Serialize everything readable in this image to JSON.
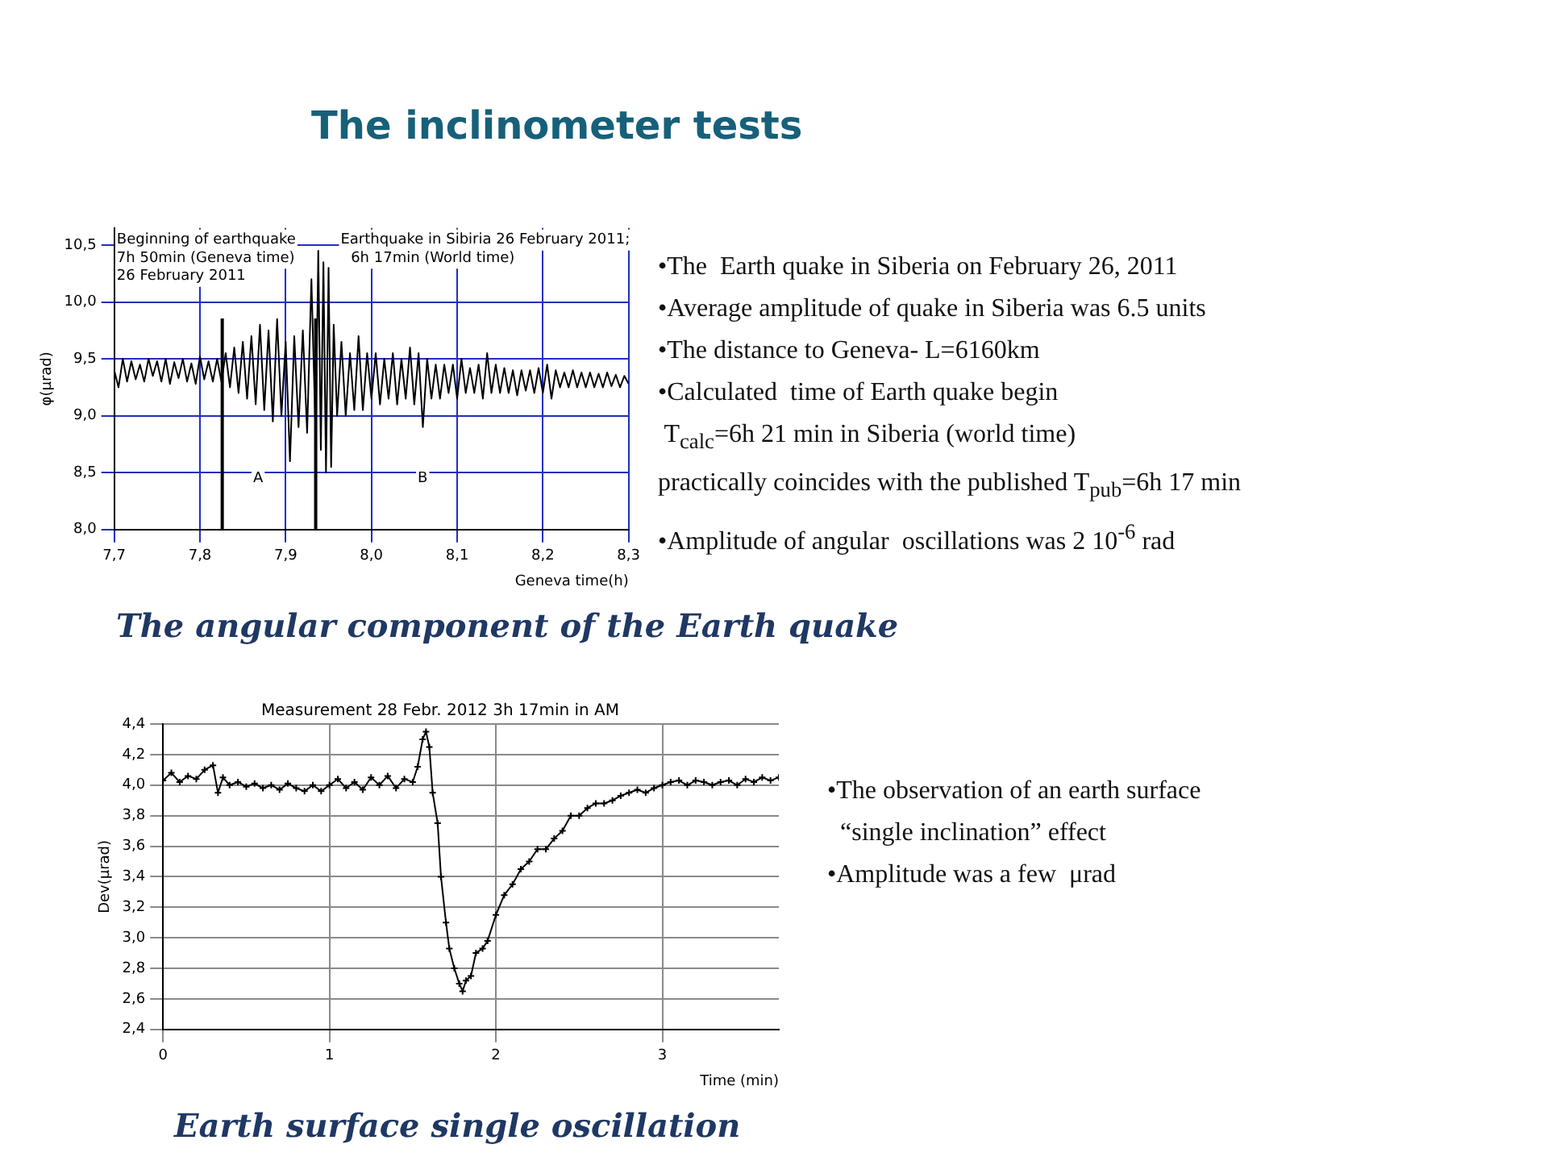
{
  "chart_data": [
    {
      "type": "other",
      "title": "The inclinometer tests"
    },
    {
      "type": "line",
      "xlabel": "Geneva time(h)",
      "ylabel": "φ(μrad)",
      "grid": true,
      "marker": "none",
      "xlim": [
        7.7,
        8.3
      ],
      "ylim": [
        8.0,
        10.65
      ],
      "xticks": [
        {
          "value": 7.7,
          "label": "7,7"
        },
        {
          "value": 7.8,
          "label": "7,8"
        },
        {
          "value": 7.9,
          "label": "7,9"
        },
        {
          "value": 8.0,
          "label": "8,0"
        },
        {
          "value": 8.1,
          "label": "8,1"
        },
        {
          "value": 8.2,
          "label": "8,2"
        },
        {
          "value": 8.3,
          "label": "8,3"
        }
      ],
      "yticks": [
        {
          "value": 8.0,
          "label": "8,0"
        },
        {
          "value": 8.5,
          "label": "8,5"
        },
        {
          "value": 9.0,
          "label": "9,0"
        },
        {
          "value": 9.5,
          "label": "9,5"
        },
        {
          "value": 10.0,
          "label": "10,0"
        },
        {
          "value": 10.5,
          "label": "10,5"
        }
      ],
      "x": [
        7.7,
        7.705,
        7.71,
        7.715,
        7.72,
        7.725,
        7.73,
        7.735,
        7.74,
        7.745,
        7.75,
        7.755,
        7.76,
        7.765,
        7.77,
        7.775,
        7.78,
        7.785,
        7.79,
        7.795,
        7.8,
        7.805,
        7.81,
        7.815,
        7.82,
        7.825,
        7.83,
        7.835,
        7.84,
        7.845,
        7.85,
        7.855,
        7.86,
        7.865,
        7.87,
        7.875,
        7.88,
        7.885,
        7.89,
        7.895,
        7.9,
        7.905,
        7.91,
        7.915,
        7.92,
        7.925,
        7.93,
        7.935,
        7.938,
        7.941,
        7.944,
        7.947,
        7.95,
        7.953,
        7.956,
        7.96,
        7.965,
        7.97,
        7.975,
        7.98,
        7.985,
        7.99,
        7.995,
        8.0,
        8.005,
        8.01,
        8.015,
        8.02,
        8.025,
        8.03,
        8.035,
        8.04,
        8.045,
        8.05,
        8.055,
        8.06,
        8.065,
        8.07,
        8.075,
        8.08,
        8.085,
        8.09,
        8.095,
        8.1,
        8.105,
        8.11,
        8.115,
        8.12,
        8.125,
        8.13,
        8.135,
        8.14,
        8.145,
        8.15,
        8.155,
        8.16,
        8.165,
        8.17,
        8.175,
        8.18,
        8.185,
        8.19,
        8.195,
        8.2,
        8.205,
        8.21,
        8.215,
        8.22,
        8.225,
        8.23,
        8.235,
        8.24,
        8.245,
        8.25,
        8.255,
        8.26,
        8.265,
        8.27,
        8.275,
        8.28,
        8.285,
        8.29,
        8.295,
        8.3
      ],
      "series": [
        {
          "color": "#000000",
          "values": [
            9.4,
            9.25,
            9.5,
            9.3,
            9.48,
            9.32,
            9.45,
            9.3,
            9.5,
            9.35,
            9.48,
            9.3,
            9.5,
            9.28,
            9.47,
            9.33,
            9.5,
            9.3,
            9.46,
            9.28,
            9.52,
            9.32,
            9.48,
            9.3,
            9.5,
            9.3,
            9.55,
            9.25,
            9.6,
            9.2,
            9.65,
            9.15,
            9.7,
            9.1,
            9.8,
            9.05,
            9.75,
            8.95,
            9.85,
            9.0,
            9.65,
            8.6,
            9.7,
            8.9,
            9.75,
            8.85,
            10.2,
            8.8,
            10.45,
            8.7,
            10.35,
            8.5,
            10.3,
            8.55,
            9.8,
            9.0,
            9.65,
            9.0,
            9.55,
            9.05,
            9.7,
            9.05,
            9.55,
            9.15,
            9.55,
            9.1,
            9.5,
            9.15,
            9.55,
            9.1,
            9.5,
            9.15,
            9.6,
            9.1,
            9.55,
            8.9,
            9.5,
            9.15,
            9.45,
            9.15,
            9.45,
            9.2,
            9.45,
            9.15,
            9.5,
            9.2,
            9.42,
            9.2,
            9.45,
            9.15,
            9.55,
            9.2,
            9.45,
            9.2,
            9.42,
            9.2,
            9.4,
            9.18,
            9.4,
            9.22,
            9.4,
            9.2,
            9.42,
            9.2,
            9.45,
            9.15,
            9.4,
            9.25,
            9.38,
            9.25,
            9.4,
            9.25,
            9.38,
            9.25,
            9.38,
            9.25,
            9.37,
            9.25,
            9.38,
            9.26,
            9.36,
            9.25,
            9.35,
            9.28
          ]
        }
      ],
      "ref_lines": [
        {
          "axis": "x",
          "value": 7.826,
          "color": "#000000"
        },
        {
          "axis": "x",
          "value": 7.935,
          "color": "#000000"
        }
      ],
      "annotations": [
        "Beginning of earthquake",
        "7h 50min (Geneva time)",
        "26 February 2011",
        "Earthquake in Sibiria 26 February 2011;",
        "6h 17min (World time)",
        "A",
        "B",
        "The angular component of the Earth quake"
      ]
    },
    {
      "type": "other",
      "annotations": [
        "•The  Earth quake in Siberia on February 26, 2011",
        "•Average amplitude of quake in Siberia was 6.5 units",
        "•The distance to Geneva- L=6160km",
        "•Calculated  time of Earth quake begin",
        " T$_{calc}$=6h 21 min in Siberia (world time)",
        "practically coincides with the published T$_{pub}$=6h 17 min",
        "•Amplitude of angular  oscillations was 2 10$^{-6}$ rad"
      ]
    },
    {
      "type": "line",
      "title": "Measurement 28 Febr. 2012 3h 17min in AM",
      "xlabel": "Time (min)",
      "ylabel": "Dev(μrad)",
      "grid": true,
      "marker": "cross",
      "xlim": [
        0,
        3.7
      ],
      "ylim": [
        2.4,
        4.4
      ],
      "xticks": [
        0,
        1,
        2,
        3
      ],
      "yticks": [
        {
          "value": 2.4,
          "label": "2,4"
        },
        {
          "value": 2.6,
          "label": "2,6"
        },
        {
          "value": 2.8,
          "label": "2,8"
        },
        {
          "value": 3.0,
          "label": "3,0"
        },
        {
          "value": 3.2,
          "label": "3,2"
        },
        {
          "value": 3.4,
          "label": "3,4"
        },
        {
          "value": 3.6,
          "label": "3,6"
        },
        {
          "value": 3.8,
          "label": "3,8"
        },
        {
          "value": 4.0,
          "label": "4,0"
        },
        {
          "value": 4.2,
          "label": "4,2"
        },
        {
          "value": 4.4,
          "label": "4,4"
        }
      ],
      "x": [
        0,
        0.05,
        0.1,
        0.15,
        0.2,
        0.25,
        0.3,
        0.33,
        0.36,
        0.4,
        0.45,
        0.5,
        0.55,
        0.6,
        0.65,
        0.7,
        0.75,
        0.8,
        0.85,
        0.9,
        0.95,
        1.0,
        1.05,
        1.1,
        1.15,
        1.2,
        1.25,
        1.3,
        1.35,
        1.4,
        1.45,
        1.5,
        1.53,
        1.56,
        1.58,
        1.6,
        1.62,
        1.65,
        1.67,
        1.7,
        1.72,
        1.75,
        1.78,
        1.8,
        1.82,
        1.85,
        1.88,
        1.92,
        1.95,
        2.0,
        2.05,
        2.1,
        2.15,
        2.2,
        2.25,
        2.3,
        2.35,
        2.4,
        2.45,
        2.5,
        2.55,
        2.6,
        2.65,
        2.7,
        2.75,
        2.8,
        2.85,
        2.9,
        2.95,
        3.0,
        3.05,
        3.1,
        3.15,
        3.2,
        3.25,
        3.3,
        3.35,
        3.4,
        3.45,
        3.5,
        3.55,
        3.6,
        3.65,
        3.7
      ],
      "series": [
        {
          "color": "#000000",
          "values": [
            4.03,
            4.08,
            4.02,
            4.06,
            4.04,
            4.1,
            4.13,
            3.95,
            4.05,
            4.0,
            4.02,
            3.99,
            4.01,
            3.98,
            4.0,
            3.97,
            4.01,
            3.98,
            3.96,
            4.0,
            3.96,
            4.0,
            4.04,
            3.98,
            4.02,
            3.97,
            4.05,
            4.0,
            4.06,
            3.98,
            4.04,
            4.02,
            4.12,
            4.3,
            4.35,
            4.25,
            3.95,
            3.75,
            3.4,
            3.1,
            2.93,
            2.8,
            2.7,
            2.65,
            2.72,
            2.75,
            2.9,
            2.93,
            2.98,
            3.15,
            3.28,
            3.35,
            3.45,
            3.5,
            3.58,
            3.58,
            3.65,
            3.7,
            3.8,
            3.8,
            3.85,
            3.88,
            3.88,
            3.9,
            3.93,
            3.95,
            3.97,
            3.95,
            3.98,
            4.0,
            4.02,
            4.03,
            4.0,
            4.03,
            4.02,
            4.0,
            4.02,
            4.03,
            4.0,
            4.04,
            4.02,
            4.05,
            4.03,
            4.05
          ]
        }
      ],
      "annotations": [
        "Earth surface single oscillation"
      ]
    },
    {
      "type": "other",
      "annotations": [
        "•The observation of an earth surface",
        "  “single inclination” effect",
        "•Amplitude was a few  μrad"
      ]
    }
  ]
}
